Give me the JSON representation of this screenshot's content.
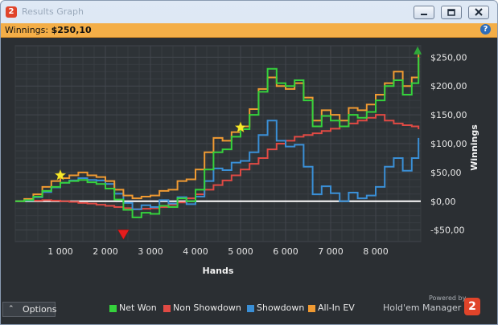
{
  "window": {
    "title": "Results Graph"
  },
  "infobar": {
    "label": "Winnings:",
    "value": "$250,10"
  },
  "footer": {
    "options_label": "Options",
    "powered_by": "Powered by",
    "brand": "Hold'em Manager"
  },
  "colors": {
    "background": "#2b2f33",
    "grid": "#41464c",
    "net_won": "#35d23c",
    "non_showdown": "#e04a44",
    "showdown": "#3a8fd6",
    "all_in_ev": "#f09a32",
    "zero_line": "#ffffff",
    "marker_star": "#f7ea2a",
    "marker_low": "#e51d1d",
    "marker_high": "#2fa83a"
  },
  "chart_data": {
    "type": "line",
    "xlabel": "Hands",
    "ylabel": "Winnings",
    "xlim": [
      0,
      9000
    ],
    "ylim": [
      -70,
      270
    ],
    "x_ticks": [
      1000,
      2000,
      3000,
      4000,
      5000,
      6000,
      7000,
      8000
    ],
    "x_tick_labels": [
      "1 000",
      "2 000",
      "3 000",
      "4 000",
      "5 000",
      "6 000",
      "7 000",
      "8 000"
    ],
    "y_ticks": [
      250,
      200,
      150,
      100,
      50,
      0,
      -50
    ],
    "y_tick_labels": [
      "$250,00",
      "$200,00",
      "$150,00",
      "$100,00",
      "$50,00",
      "$0,00",
      "-$50,00"
    ],
    "grid": true,
    "legend_position": "bottom",
    "x": [
      0,
      200,
      400,
      600,
      800,
      1000,
      1200,
      1400,
      1600,
      1800,
      2000,
      2200,
      2400,
      2600,
      2800,
      3000,
      3200,
      3400,
      3600,
      3800,
      4000,
      4200,
      4400,
      4600,
      4800,
      5000,
      5200,
      5400,
      5600,
      5800,
      6000,
      6200,
      6400,
      6600,
      6800,
      7000,
      7200,
      7400,
      7600,
      7800,
      8000,
      8200,
      8400,
      8600,
      8800,
      8950
    ],
    "series": [
      {
        "name": "Net Won",
        "values": [
          0,
          2,
          8,
          18,
          25,
          32,
          35,
          37,
          33,
          30,
          22,
          3,
          -15,
          -28,
          -20,
          -22,
          -8,
          -10,
          5,
          0,
          20,
          55,
          85,
          90,
          112,
          125,
          150,
          190,
          230,
          205,
          200,
          210,
          175,
          130,
          148,
          140,
          130,
          150,
          145,
          155,
          175,
          200,
          210,
          185,
          205,
          250
        ]
      },
      {
        "name": "Non Showdown",
        "values": [
          0,
          1,
          1,
          2,
          1,
          0,
          -1,
          -3,
          -4,
          -6,
          -8,
          -10,
          -12,
          -14,
          -13,
          -12,
          -10,
          -6,
          -2,
          5,
          12,
          20,
          28,
          36,
          45,
          55,
          65,
          75,
          90,
          100,
          105,
          112,
          115,
          118,
          122,
          126,
          130,
          135,
          140,
          145,
          150,
          140,
          135,
          132,
          130,
          125
        ]
      },
      {
        "name": "Showdown",
        "values": [
          0,
          1,
          7,
          16,
          24,
          32,
          36,
          40,
          37,
          36,
          30,
          13,
          -3,
          -14,
          -7,
          -10,
          2,
          -4,
          7,
          -5,
          8,
          35,
          57,
          54,
          67,
          70,
          85,
          115,
          140,
          105,
          95,
          98,
          60,
          12,
          26,
          14,
          0,
          15,
          5,
          10,
          25,
          60,
          75,
          53,
          75,
          110
        ]
      },
      {
        "name": "All-In EV",
        "values": [
          0,
          4,
          12,
          25,
          35,
          40,
          45,
          50,
          45,
          42,
          35,
          20,
          10,
          5,
          8,
          10,
          18,
          20,
          35,
          38,
          55,
          85,
          110,
          105,
          120,
          130,
          160,
          195,
          215,
          200,
          195,
          205,
          180,
          140,
          158,
          150,
          140,
          162,
          158,
          168,
          185,
          205,
          225,
          200,
          215,
          255
        ]
      }
    ],
    "markers": [
      {
        "type": "star",
        "x": 1000,
        "y": 45
      },
      {
        "type": "star",
        "x": 5000,
        "y": 128
      },
      {
        "type": "triangle-down",
        "x": 2400,
        "y": -58
      },
      {
        "type": "triangle-up",
        "x": 8930,
        "y": 262
      }
    ]
  }
}
